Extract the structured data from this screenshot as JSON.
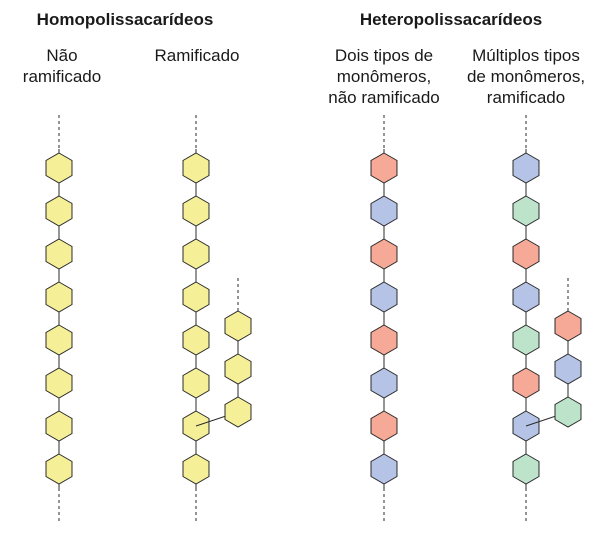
{
  "headings": {
    "homo": "Homopolissacarídeos",
    "hetero": "Heteropolissacarídeos"
  },
  "columns": {
    "homo_linear": [
      "Não",
      "ramificado"
    ],
    "homo_branched": [
      "Ramificado"
    ],
    "hetero_linear": [
      "Dois tipos de",
      "monômeros,",
      "não ramificado"
    ],
    "hetero_branched": [
      "Múltiplos tipos",
      "de monômeros,",
      "ramificado"
    ]
  },
  "colors": {
    "yellow": "#f5f098",
    "pink": "#f6a996",
    "blue": "#b5c4e6",
    "green": "#bde4cb",
    "stroke": "#2b2b2b"
  },
  "chains": {
    "homo_linear": [
      "yellow",
      "yellow",
      "yellow",
      "yellow",
      "yellow",
      "yellow",
      "yellow",
      "yellow"
    ],
    "homo_branched_main": [
      "yellow",
      "yellow",
      "yellow",
      "yellow",
      "yellow",
      "yellow",
      "yellow",
      "yellow"
    ],
    "homo_branched_side": [
      "yellow",
      "yellow",
      "yellow"
    ],
    "hetero_linear": [
      "pink",
      "blue",
      "pink",
      "blue",
      "pink",
      "blue",
      "pink",
      "blue"
    ],
    "hetero_branched_main": [
      "blue",
      "green",
      "pink",
      "blue",
      "green",
      "pink",
      "blue",
      "green"
    ],
    "hetero_branched_side": [
      "pink",
      "blue",
      "green"
    ]
  }
}
